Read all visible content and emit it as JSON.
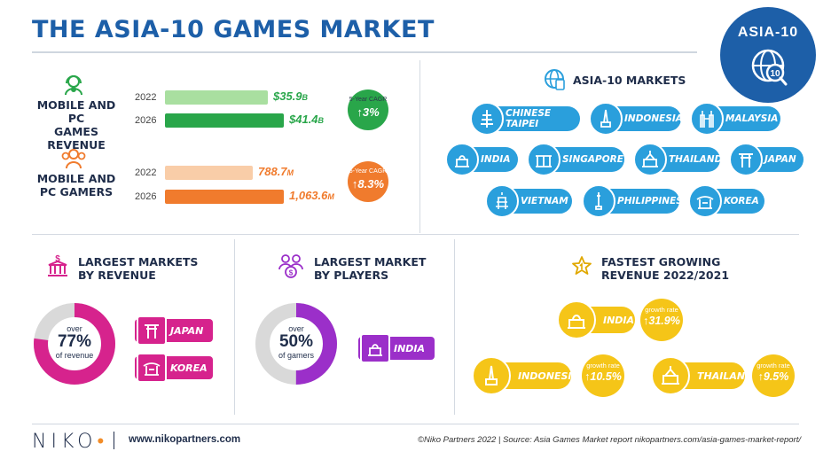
{
  "title": "THE ASIA-10 GAMES MARKET",
  "badge": {
    "label": "ASIA-10",
    "globe_number": "10"
  },
  "revenue": {
    "label_line1": "MOBILE AND PC",
    "label_line2": "GAMES REVENUE",
    "rows": [
      {
        "year": "2022",
        "value": "$35.9",
        "unit": "B"
      },
      {
        "year": "2026",
        "value": "$41.4",
        "unit": "B"
      }
    ],
    "cagr_label": "5-Year CAGR",
    "cagr_value": "3%",
    "color_light": "#a9dfa0",
    "color_dark": "#29a64a"
  },
  "gamers": {
    "label_line1": "MOBILE AND",
    "label_line2": "PC GAMERS",
    "rows": [
      {
        "year": "2022",
        "value": "788.7",
        "unit": "M"
      },
      {
        "year": "2026",
        "value": "1,063.6",
        "unit": "M"
      }
    ],
    "cagr_label": "5-Year CAGR",
    "cagr_value": "8.3%",
    "color_light": "#f9cda8",
    "color_dark": "#f07b2d"
  },
  "markets": {
    "heading": "ASIA-10 MARKETS",
    "items": [
      "CHINESE TAIPEI",
      "INDONESIA",
      "MALAYSIA",
      "INDIA",
      "SINGAPORE",
      "THAILAND",
      "JAPAN",
      "VIETNAM",
      "PHILIPPINES",
      "KOREA"
    ]
  },
  "largest_revenue": {
    "heading_line1": "LARGEST MARKETS",
    "heading_line2": "BY REVENUE",
    "donut_over": "over",
    "donut_pct": "77%",
    "donut_sub": "of revenue",
    "share": 0.77,
    "color": "#d6238d",
    "tags": [
      "JAPAN",
      "KOREA"
    ]
  },
  "largest_players": {
    "heading_line1": "LARGEST MARKET",
    "heading_line2": "BY PLAYERS",
    "donut_over": "over",
    "donut_pct": "50%",
    "donut_sub": "of gamers",
    "share": 0.5,
    "color": "#9b2fc9",
    "tags": [
      "INDIA"
    ]
  },
  "fastest_growing": {
    "heading_line1": "FASTEST GROWING",
    "heading_line2": "REVENUE 2022/2021",
    "growth_label": "growth rate",
    "items": [
      {
        "country": "INDIA",
        "rate": "31.9%"
      },
      {
        "country": "INDONESIA",
        "rate": "10.5%"
      },
      {
        "country": "THAILAND",
        "rate": "9.5%"
      }
    ],
    "color": "#f5c518"
  },
  "footer": {
    "logo": "NIKO",
    "url": "www.nikopartners.com",
    "credit": "©Niko Partners 2022 | Source: Asia Games Market report nikopartners.com/asia-games-market-report/"
  }
}
